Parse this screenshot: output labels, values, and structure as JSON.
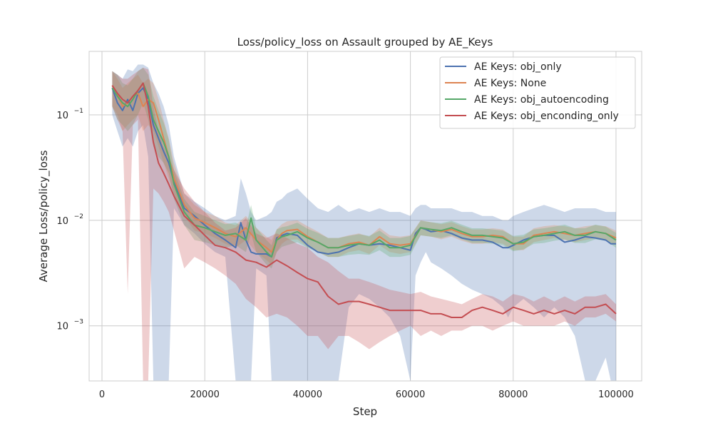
{
  "chart_data": {
    "type": "line",
    "title": "Loss/policy_loss on Assault grouped by AE_Keys",
    "xlabel": "Step",
    "ylabel": "Average Loss/policy_loss",
    "xlim": [
      -2500,
      105000
    ],
    "ylim": [
      0.0003,
      0.4
    ],
    "yscale": "log",
    "grid": true,
    "legend_position": "top-right",
    "x_ticks": [
      0,
      20000,
      40000,
      60000,
      80000,
      100000
    ],
    "x_tick_labels": [
      "0",
      "20000",
      "40000",
      "60000",
      "80000",
      "100000"
    ],
    "y_ticks": [
      0.001,
      0.01,
      0.1
    ],
    "y_tick_labels": [
      "10",
      "10",
      "10"
    ],
    "y_tick_exponents": [
      "−3",
      "−2",
      "−1"
    ],
    "series": [
      {
        "name": "AE Keys: obj_only",
        "color": "#4c72b0",
        "x": [
          2000,
          3000,
          4000,
          5000,
          6000,
          7000,
          8000,
          9000,
          10000,
          11000,
          12000,
          13000,
          14000,
          16000,
          18000,
          20000,
          22000,
          24000,
          26000,
          27000,
          28000,
          29000,
          30000,
          32000,
          33000,
          34000,
          35000,
          36000,
          38000,
          40000,
          42000,
          44000,
          46000,
          48000,
          50000,
          52000,
          54000,
          56000,
          58000,
          60000,
          61000,
          62000,
          63000,
          64000,
          66000,
          68000,
          70000,
          72000,
          74000,
          76000,
          78000,
          79000,
          80000,
          82000,
          84000,
          86000,
          88000,
          90000,
          92000,
          94000,
          96000,
          98000,
          99000,
          100000
        ],
        "y": [
          0.18,
          0.13,
          0.11,
          0.14,
          0.11,
          0.16,
          0.18,
          0.14,
          0.08,
          0.06,
          0.045,
          0.035,
          0.023,
          0.013,
          0.011,
          0.009,
          0.0075,
          0.0065,
          0.0055,
          0.0095,
          0.0065,
          0.005,
          0.0048,
          0.0048,
          0.0045,
          0.0068,
          0.0072,
          0.0075,
          0.0072,
          0.0058,
          0.005,
          0.0048,
          0.005,
          0.0055,
          0.006,
          0.0058,
          0.006,
          0.0058,
          0.0055,
          0.0052,
          0.0075,
          0.0085,
          0.0082,
          0.0078,
          0.008,
          0.0075,
          0.0068,
          0.0065,
          0.0065,
          0.0062,
          0.0055,
          0.0055,
          0.0058,
          0.0065,
          0.007,
          0.0072,
          0.0072,
          0.0062,
          0.0065,
          0.007,
          0.0068,
          0.0065,
          0.006,
          0.006
        ],
        "lower": [
          0.1,
          0.07,
          0.05,
          0.06,
          0.05,
          0.07,
          0.08,
          0.04,
          0.0002,
          0.0002,
          0.0002,
          0.0002,
          0.013,
          0.009,
          0.0075,
          0.006,
          0.005,
          0.0045,
          0.0002,
          0.0002,
          0.0002,
          0.0002,
          0.0035,
          0.003,
          0.0002,
          0.0002,
          0.0002,
          0.0002,
          0.0002,
          0.0002,
          0.0002,
          0.0002,
          0.0002,
          0.0015,
          0.002,
          0.0018,
          0.0015,
          0.0012,
          0.0008,
          0.0002,
          0.003,
          0.004,
          0.005,
          0.004,
          0.0035,
          0.003,
          0.0025,
          0.0022,
          0.002,
          0.0018,
          0.0015,
          0.0012,
          0.0015,
          0.0018,
          0.0015,
          0.0012,
          0.0015,
          0.0012,
          0.0008,
          0.0002,
          0.0002,
          0.0005,
          0.0002,
          0.0002
        ],
        "upper": [
          0.26,
          0.24,
          0.22,
          0.27,
          0.26,
          0.3,
          0.3,
          0.28,
          0.2,
          0.16,
          0.12,
          0.08,
          0.04,
          0.018,
          0.015,
          0.013,
          0.011,
          0.01,
          0.011,
          0.025,
          0.018,
          0.012,
          0.01,
          0.011,
          0.012,
          0.015,
          0.016,
          0.018,
          0.02,
          0.016,
          0.013,
          0.012,
          0.014,
          0.012,
          0.013,
          0.012,
          0.013,
          0.012,
          0.012,
          0.011,
          0.013,
          0.014,
          0.014,
          0.013,
          0.013,
          0.013,
          0.012,
          0.012,
          0.011,
          0.011,
          0.01,
          0.01,
          0.011,
          0.012,
          0.013,
          0.014,
          0.013,
          0.012,
          0.013,
          0.013,
          0.013,
          0.012,
          0.012,
          0.012
        ]
      },
      {
        "name": "AE Keys: None",
        "color": "#dd8452",
        "x": [
          2000,
          3000,
          4000,
          5000,
          6000,
          7000,
          8000,
          9000,
          10000,
          11000,
          12000,
          13000,
          14000,
          16000,
          18000,
          20000,
          22000,
          24000,
          26000,
          28000,
          30000,
          32000,
          33000,
          34000,
          35000,
          36000,
          38000,
          40000,
          42000,
          44000,
          46000,
          48000,
          50000,
          52000,
          54000,
          56000,
          58000,
          60000,
          62000,
          64000,
          66000,
          68000,
          70000,
          72000,
          74000,
          76000,
          78000,
          80000,
          82000,
          84000,
          86000,
          88000,
          90000,
          92000,
          94000,
          96000,
          98000,
          100000
        ],
        "y": [
          0.19,
          0.16,
          0.12,
          0.13,
          0.15,
          0.16,
          0.12,
          0.14,
          0.13,
          0.09,
          0.06,
          0.04,
          0.025,
          0.014,
          0.0105,
          0.0095,
          0.0085,
          0.0075,
          0.007,
          0.0085,
          0.0065,
          0.0055,
          0.005,
          0.0065,
          0.0075,
          0.008,
          0.0082,
          0.007,
          0.0062,
          0.0055,
          0.0055,
          0.006,
          0.0062,
          0.0058,
          0.007,
          0.006,
          0.0058,
          0.006,
          0.0085,
          0.0082,
          0.0078,
          0.0082,
          0.0075,
          0.007,
          0.007,
          0.0072,
          0.007,
          0.006,
          0.006,
          0.0072,
          0.0075,
          0.0078,
          0.0075,
          0.0072,
          0.0075,
          0.0078,
          0.0075,
          0.0068
        ],
        "lower": [
          0.12,
          0.1,
          0.07,
          0.08,
          0.09,
          0.1,
          0.07,
          0.08,
          0.07,
          0.05,
          0.035,
          0.025,
          0.018,
          0.011,
          0.008,
          0.0075,
          0.0068,
          0.006,
          0.0055,
          0.0065,
          0.005,
          0.0042,
          0.0038,
          0.005,
          0.006,
          0.0065,
          0.0066,
          0.0056,
          0.005,
          0.0045,
          0.0045,
          0.005,
          0.0052,
          0.0048,
          0.0058,
          0.005,
          0.0048,
          0.005,
          0.0072,
          0.007,
          0.0066,
          0.007,
          0.0064,
          0.006,
          0.006,
          0.0062,
          0.006,
          0.0052,
          0.0052,
          0.0062,
          0.0065,
          0.0068,
          0.0065,
          0.0062,
          0.0065,
          0.0068,
          0.0065,
          0.0058
        ],
        "upper": [
          0.26,
          0.22,
          0.18,
          0.2,
          0.22,
          0.24,
          0.2,
          0.22,
          0.2,
          0.14,
          0.09,
          0.06,
          0.035,
          0.018,
          0.014,
          0.012,
          0.011,
          0.0095,
          0.009,
          0.011,
          0.0085,
          0.007,
          0.0065,
          0.0082,
          0.0092,
          0.0098,
          0.01,
          0.0088,
          0.0078,
          0.0068,
          0.0068,
          0.0072,
          0.0075,
          0.007,
          0.0085,
          0.0072,
          0.007,
          0.0072,
          0.01,
          0.0096,
          0.0092,
          0.0096,
          0.0088,
          0.0082,
          0.0082,
          0.0084,
          0.0082,
          0.007,
          0.007,
          0.0084,
          0.0088,
          0.009,
          0.0088,
          0.0084,
          0.0088,
          0.009,
          0.0088,
          0.008
        ]
      },
      {
        "name": "AE Keys: obj_autoencoding",
        "color": "#55a868",
        "x": [
          2000,
          3000,
          4000,
          5000,
          6000,
          7000,
          8000,
          9000,
          10000,
          11000,
          12000,
          13000,
          14000,
          16000,
          18000,
          20000,
          22000,
          24000,
          26000,
          28000,
          29000,
          30000,
          32000,
          33000,
          34000,
          35000,
          36000,
          38000,
          40000,
          42000,
          44000,
          46000,
          48000,
          50000,
          52000,
          54000,
          56000,
          58000,
          60000,
          62000,
          64000,
          66000,
          68000,
          70000,
          72000,
          74000,
          76000,
          78000,
          80000,
          82000,
          84000,
          86000,
          88000,
          90000,
          92000,
          94000,
          96000,
          98000,
          100000
        ],
        "y": [
          0.18,
          0.15,
          0.13,
          0.12,
          0.14,
          0.17,
          0.2,
          0.15,
          0.09,
          0.07,
          0.055,
          0.04,
          0.022,
          0.012,
          0.009,
          0.0085,
          0.0078,
          0.0072,
          0.0075,
          0.0065,
          0.0105,
          0.0065,
          0.005,
          0.0045,
          0.0065,
          0.007,
          0.0072,
          0.0078,
          0.0068,
          0.0062,
          0.0055,
          0.0055,
          0.0058,
          0.006,
          0.0058,
          0.0065,
          0.0055,
          0.0055,
          0.0058,
          0.0085,
          0.0082,
          0.008,
          0.0085,
          0.0078,
          0.0072,
          0.0072,
          0.007,
          0.0068,
          0.006,
          0.0062,
          0.007,
          0.0072,
          0.0075,
          0.0078,
          0.0072,
          0.0072,
          0.0078,
          0.0075,
          0.0065
        ],
        "lower": [
          0.12,
          0.09,
          0.08,
          0.07,
          0.08,
          0.1,
          0.13,
          0.09,
          0.05,
          0.04,
          0.035,
          0.028,
          0.016,
          0.009,
          0.0065,
          0.0062,
          0.0058,
          0.0055,
          0.0058,
          0.005,
          0.0075,
          0.005,
          0.0038,
          0.0035,
          0.005,
          0.0056,
          0.0058,
          0.0062,
          0.0055,
          0.005,
          0.0045,
          0.0045,
          0.0047,
          0.0048,
          0.0047,
          0.0052,
          0.0045,
          0.0045,
          0.0047,
          0.0072,
          0.007,
          0.0068,
          0.0072,
          0.0066,
          0.0061,
          0.0061,
          0.006,
          0.0058,
          0.0051,
          0.0053,
          0.006,
          0.0061,
          0.0064,
          0.0066,
          0.0061,
          0.0061,
          0.0066,
          0.0064,
          0.0055
        ],
        "upper": [
          0.26,
          0.24,
          0.2,
          0.19,
          0.22,
          0.26,
          0.28,
          0.24,
          0.15,
          0.11,
          0.085,
          0.058,
          0.03,
          0.016,
          0.012,
          0.011,
          0.01,
          0.0092,
          0.0095,
          0.0085,
          0.014,
          0.0085,
          0.0065,
          0.0058,
          0.0082,
          0.0086,
          0.0088,
          0.0095,
          0.0083,
          0.0076,
          0.0068,
          0.0068,
          0.0071,
          0.0074,
          0.0071,
          0.008,
          0.0068,
          0.0068,
          0.0071,
          0.0099,
          0.0096,
          0.0094,
          0.0099,
          0.0091,
          0.0084,
          0.0084,
          0.0082,
          0.008,
          0.0071,
          0.0073,
          0.0082,
          0.0084,
          0.0087,
          0.0091,
          0.0084,
          0.0084,
          0.0091,
          0.0087,
          0.0076
        ]
      },
      {
        "name": "AE Keys: obj_enconding_only",
        "color": "#c44e52",
        "x": [
          2000,
          3000,
          4000,
          5000,
          6000,
          7000,
          8000,
          9000,
          10000,
          11000,
          12000,
          13000,
          14000,
          16000,
          18000,
          20000,
          22000,
          24000,
          26000,
          28000,
          30000,
          32000,
          34000,
          36000,
          38000,
          40000,
          42000,
          44000,
          46000,
          48000,
          50000,
          52000,
          54000,
          56000,
          58000,
          60000,
          62000,
          64000,
          66000,
          68000,
          70000,
          72000,
          74000,
          76000,
          78000,
          80000,
          82000,
          84000,
          86000,
          88000,
          90000,
          92000,
          94000,
          96000,
          98000,
          100000
        ],
        "y": [
          0.19,
          0.16,
          0.14,
          0.13,
          0.15,
          0.17,
          0.2,
          0.12,
          0.055,
          0.035,
          0.028,
          0.022,
          0.017,
          0.011,
          0.009,
          0.0072,
          0.0058,
          0.0055,
          0.005,
          0.0042,
          0.004,
          0.0036,
          0.0042,
          0.0037,
          0.0032,
          0.0028,
          0.0026,
          0.0019,
          0.0016,
          0.0017,
          0.0017,
          0.0016,
          0.0015,
          0.0014,
          0.0014,
          0.0014,
          0.0014,
          0.0013,
          0.0013,
          0.0012,
          0.0012,
          0.0014,
          0.0015,
          0.0014,
          0.0013,
          0.0015,
          0.0014,
          0.0013,
          0.0014,
          0.0013,
          0.0014,
          0.0013,
          0.0015,
          0.0015,
          0.0016,
          0.0013
        ],
        "lower": [
          0.12,
          0.09,
          0.07,
          0.002,
          0.08,
          0.09,
          0.0002,
          0.0002,
          0.02,
          0.018,
          0.015,
          0.012,
          0.008,
          0.0035,
          0.0045,
          0.004,
          0.0035,
          0.003,
          0.0025,
          0.0018,
          0.0015,
          0.0012,
          0.0013,
          0.0012,
          0.001,
          0.0008,
          0.0008,
          0.0006,
          0.0008,
          0.0008,
          0.0007,
          0.0006,
          0.0007,
          0.0008,
          0.0009,
          0.001,
          0.0008,
          0.0009,
          0.0008,
          0.0009,
          0.0009,
          0.001,
          0.001,
          0.0009,
          0.001,
          0.0011,
          0.001,
          0.001,
          0.001,
          0.001,
          0.0011,
          0.001,
          0.0012,
          0.0012,
          0.0013,
          0.0011
        ],
        "upper": [
          0.26,
          0.24,
          0.22,
          0.22,
          0.24,
          0.26,
          0.28,
          0.27,
          0.12,
          0.07,
          0.05,
          0.04,
          0.03,
          0.02,
          0.015,
          0.012,
          0.0095,
          0.008,
          0.0085,
          0.0105,
          0.0075,
          0.0068,
          0.0075,
          0.0068,
          0.006,
          0.0055,
          0.0045,
          0.004,
          0.0033,
          0.0028,
          0.0028,
          0.0026,
          0.0024,
          0.0022,
          0.0021,
          0.002,
          0.0021,
          0.0019,
          0.0018,
          0.0017,
          0.0016,
          0.0018,
          0.002,
          0.0019,
          0.0017,
          0.002,
          0.0019,
          0.0017,
          0.0019,
          0.0017,
          0.0019,
          0.0017,
          0.0019,
          0.0019,
          0.002,
          0.0016
        ]
      }
    ]
  }
}
